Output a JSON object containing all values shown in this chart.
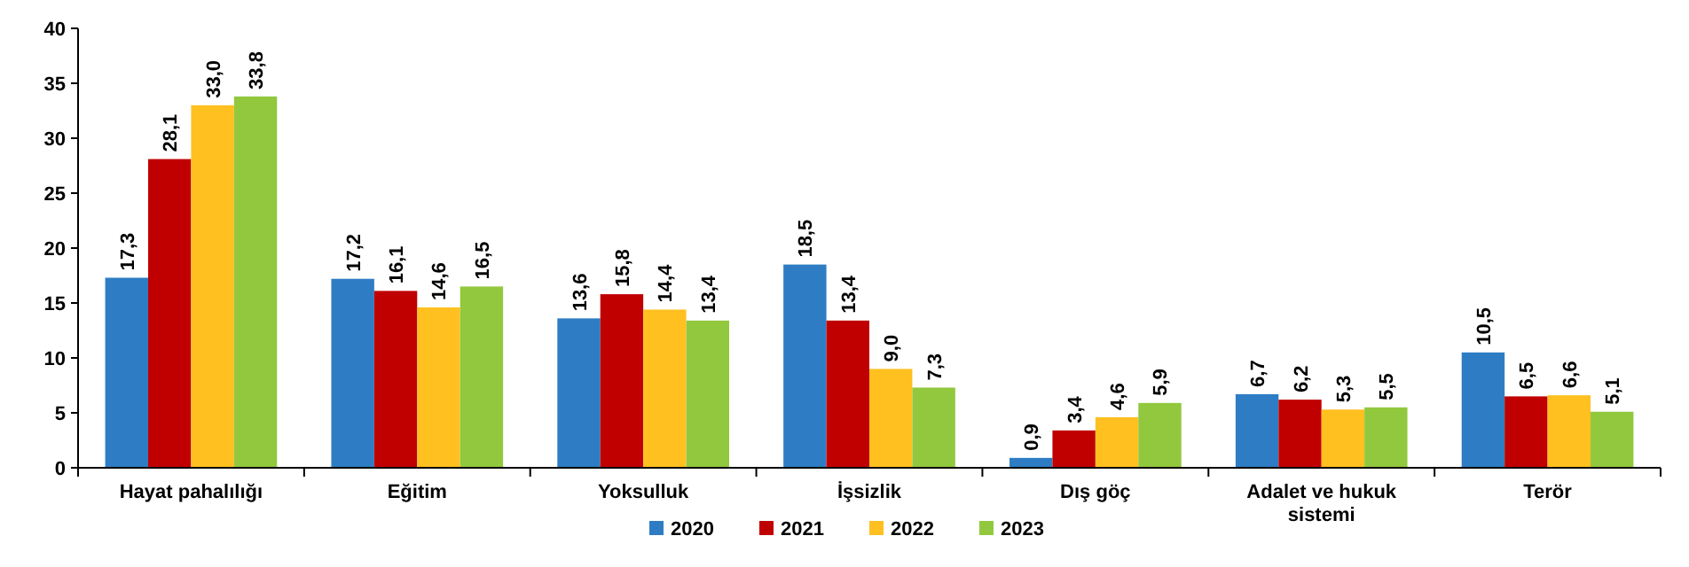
{
  "chart_data": {
    "type": "bar",
    "categories": [
      "Hayat pahalılığı",
      "Eğitim",
      "Yoksulluk",
      "İşsizlik",
      "Dış göç",
      "Adalet ve hukuk sistemi",
      "Terör"
    ],
    "ylim": [
      0,
      40
    ],
    "yticks": [
      0,
      5,
      10,
      15,
      20,
      25,
      30,
      35,
      40
    ],
    "grid": false,
    "legend": "bottom",
    "series": [
      {
        "name": "2020",
        "color": "#2e7dc4",
        "values": [
          17.3,
          17.2,
          13.6,
          18.5,
          0.9,
          6.7,
          10.5
        ],
        "value_labels": [
          "17,3",
          "17,2",
          "13,6",
          "18,5",
          "0,9",
          "6,7",
          "10,5"
        ]
      },
      {
        "name": "2021",
        "color": "#c00000",
        "values": [
          28.1,
          16.1,
          15.8,
          13.4,
          3.4,
          6.2,
          6.5
        ],
        "value_labels": [
          "28,1",
          "16,1",
          "15,8",
          "13,4",
          "3,4",
          "6,2",
          "6,5"
        ]
      },
      {
        "name": "2022",
        "color": "#ffc020",
        "values": [
          33.0,
          14.6,
          14.4,
          9.0,
          4.6,
          5.3,
          6.6
        ],
        "value_labels": [
          "33,0",
          "14,6",
          "14,4",
          "9,0",
          "4,6",
          "5,3",
          "6,6"
        ]
      },
      {
        "name": "2023",
        "color": "#92c83e",
        "values": [
          33.8,
          16.5,
          13.4,
          7.3,
          5.9,
          5.5,
          5.1
        ],
        "value_labels": [
          "33,8",
          "16,5",
          "13,4",
          "7,3",
          "5,9",
          "5,5",
          "5,1"
        ]
      }
    ]
  }
}
